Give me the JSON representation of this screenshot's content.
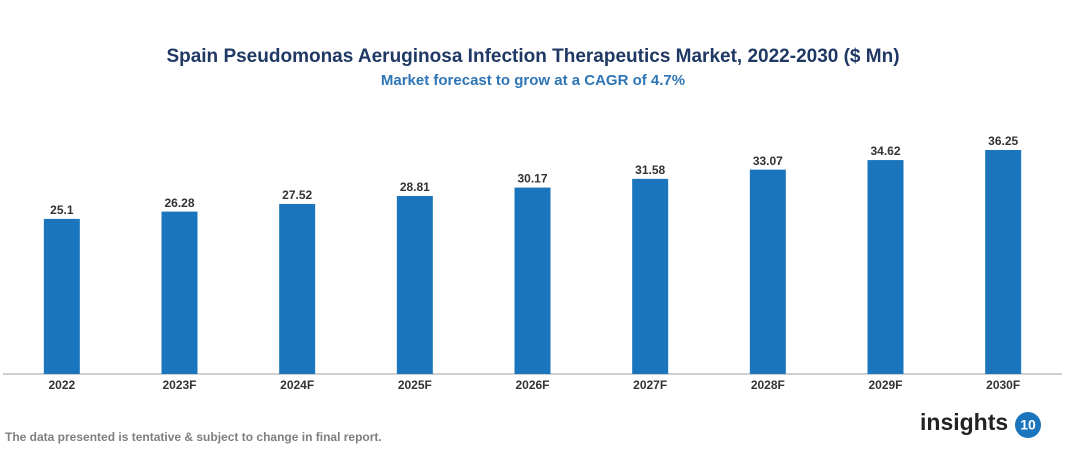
{
  "chart_data": {
    "type": "bar",
    "title": "Spain Pseudomonas Aeruginosa Infection Therapeutics Market, 2022-2030 ($ Mn)",
    "subtitle": "Market forecast to grow at a CAGR of 4.7%",
    "categories": [
      "2022",
      "2023F",
      "2024F",
      "2025F",
      "2026F",
      "2027F",
      "2028F",
      "2029F",
      "2030F"
    ],
    "values": [
      25.1,
      26.28,
      27.52,
      28.81,
      30.17,
      31.58,
      33.07,
      34.62,
      36.25
    ],
    "color": "#1a75bc",
    "footnote": "The data presented is tentative & subject to change in final report.",
    "logo_text": "insights",
    "logo_number": "10"
  }
}
